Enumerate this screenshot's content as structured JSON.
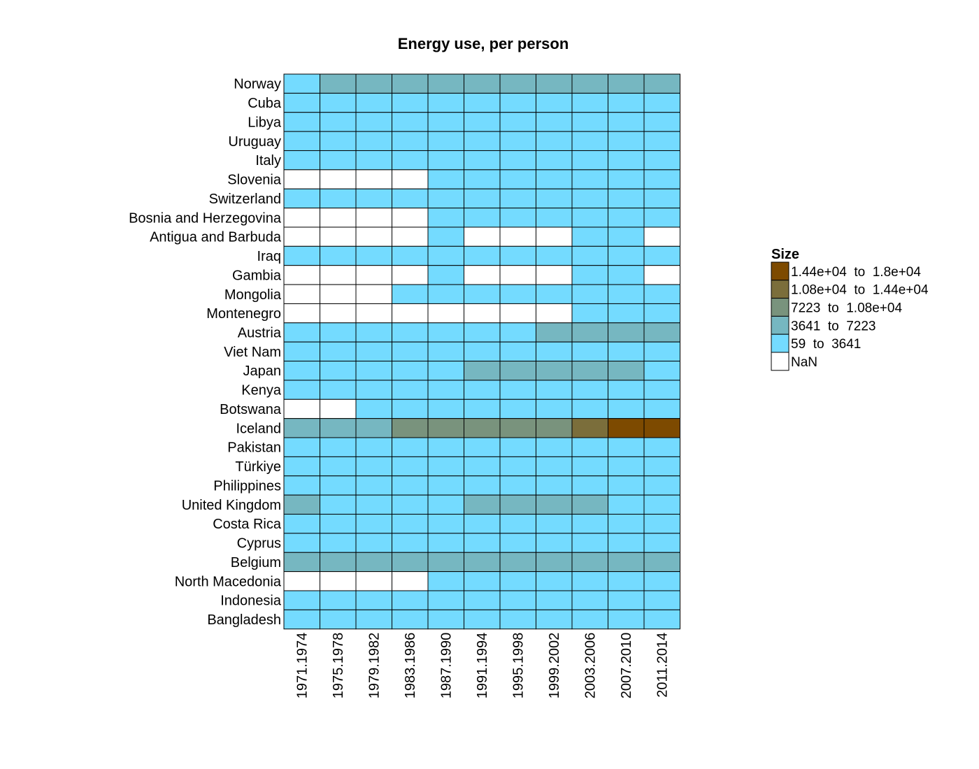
{
  "chart_data": {
    "type": "heatmap",
    "title": "Energy use, per person",
    "columns": [
      "1971.1974",
      "1975.1978",
      "1979.1982",
      "1983.1986",
      "1987.1990",
      "1991.1994",
      "1995.1998",
      "1999.2002",
      "2003.2006",
      "2007.2010",
      "2011.2014"
    ],
    "rows": [
      "Norway",
      "Cuba",
      "Libya",
      "Uruguay",
      "Italy",
      "Slovenia",
      "Switzerland",
      "Bosnia and Herzegovina",
      "Antigua and Barbuda",
      "Iraq",
      "Gambia",
      "Mongolia",
      "Montenegro",
      "Austria",
      "Viet Nam",
      "Japan",
      "Kenya",
      "Botswana",
      "Iceland",
      "Pakistan",
      "Türkiye",
      "Philippines",
      "United Kingdom",
      "Costa Rica",
      "Cyprus",
      "Belgium",
      "North Macedonia",
      "Indonesia",
      "Bangladesh"
    ],
    "value_encoding": "legend bin index (0 = lowest bin, 4 = highest bin, null = NaN)",
    "values": [
      [
        0,
        1,
        1,
        1,
        1,
        1,
        1,
        1,
        1,
        1,
        1
      ],
      [
        0,
        0,
        0,
        0,
        0,
        0,
        0,
        0,
        0,
        0,
        0
      ],
      [
        0,
        0,
        0,
        0,
        0,
        0,
        0,
        0,
        0,
        0,
        0
      ],
      [
        0,
        0,
        0,
        0,
        0,
        0,
        0,
        0,
        0,
        0,
        0
      ],
      [
        0,
        0,
        0,
        0,
        0,
        0,
        0,
        0,
        0,
        0,
        0
      ],
      [
        null,
        null,
        null,
        null,
        0,
        0,
        0,
        0,
        0,
        0,
        0
      ],
      [
        0,
        0,
        0,
        0,
        0,
        0,
        0,
        0,
        0,
        0,
        0
      ],
      [
        null,
        null,
        null,
        null,
        0,
        0,
        0,
        0,
        0,
        0,
        0
      ],
      [
        null,
        null,
        null,
        null,
        0,
        null,
        null,
        null,
        0,
        0,
        null
      ],
      [
        0,
        0,
        0,
        0,
        0,
        0,
        0,
        0,
        0,
        0,
        0
      ],
      [
        null,
        null,
        null,
        null,
        0,
        null,
        null,
        null,
        0,
        0,
        null
      ],
      [
        null,
        null,
        null,
        0,
        0,
        0,
        0,
        0,
        0,
        0,
        0
      ],
      [
        null,
        null,
        null,
        null,
        null,
        null,
        null,
        null,
        0,
        0,
        0
      ],
      [
        0,
        0,
        0,
        0,
        0,
        0,
        0,
        1,
        1,
        1,
        1
      ],
      [
        0,
        0,
        0,
        0,
        0,
        0,
        0,
        0,
        0,
        0,
        0
      ],
      [
        0,
        0,
        0,
        0,
        0,
        1,
        1,
        1,
        1,
        1,
        0
      ],
      [
        0,
        0,
        0,
        0,
        0,
        0,
        0,
        0,
        0,
        0,
        0
      ],
      [
        null,
        null,
        0,
        0,
        0,
        0,
        0,
        0,
        0,
        0,
        0
      ],
      [
        1,
        1,
        1,
        2,
        2,
        2,
        2,
        2,
        3,
        4,
        4
      ],
      [
        0,
        0,
        0,
        0,
        0,
        0,
        0,
        0,
        0,
        0,
        0
      ],
      [
        0,
        0,
        0,
        0,
        0,
        0,
        0,
        0,
        0,
        0,
        0
      ],
      [
        0,
        0,
        0,
        0,
        0,
        0,
        0,
        0,
        0,
        0,
        0
      ],
      [
        1,
        0,
        0,
        0,
        0,
        1,
        1,
        1,
        1,
        0,
        0
      ],
      [
        0,
        0,
        0,
        0,
        0,
        0,
        0,
        0,
        0,
        0,
        0
      ],
      [
        0,
        0,
        0,
        0,
        0,
        0,
        0,
        0,
        0,
        0,
        0
      ],
      [
        1,
        1,
        1,
        1,
        1,
        1,
        1,
        1,
        1,
        1,
        1
      ],
      [
        null,
        null,
        null,
        null,
        0,
        0,
        0,
        0,
        0,
        0,
        0
      ],
      [
        0,
        0,
        0,
        0,
        0,
        0,
        0,
        0,
        0,
        0,
        0
      ],
      [
        0,
        0,
        0,
        0,
        0,
        0,
        0,
        0,
        0,
        0,
        0
      ]
    ],
    "legend": {
      "title": "Size",
      "placement": "right",
      "bins": [
        {
          "label": "59  to  3641",
          "color": "#74dbff"
        },
        {
          "label": "3641  to  7223",
          "color": "#76b7c1"
        },
        {
          "label": "7223  to  1.08e+04",
          "color": "#79937d"
        },
        {
          "label": "1.08e+04  to  1.44e+04",
          "color": "#7b6e3b"
        },
        {
          "label": "1.44e+04  to  1.8e+04",
          "color": "#7d4a00"
        }
      ],
      "nan": {
        "label": "NaN",
        "color": "#ffffff"
      }
    }
  }
}
